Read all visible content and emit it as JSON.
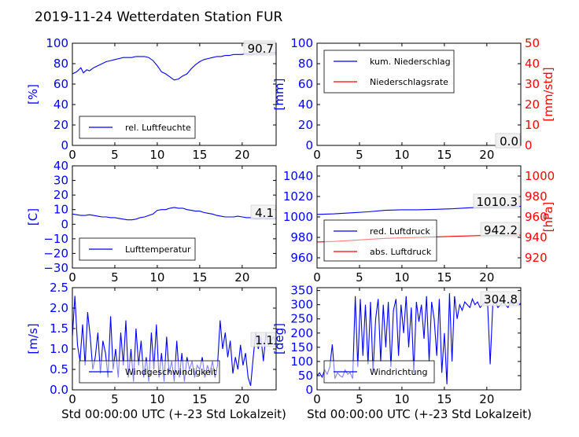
{
  "page_title": "2019-11-24 Wetterdaten Station FUR",
  "xlabel": "Std 00:00:00 UTC (+-23 Std Lokalzeit)",
  "colors": {
    "primary": "#0000ff",
    "secondary": "#ff0000"
  },
  "chart_data": [
    {
      "id": "luftfeuchte",
      "type": "line",
      "xlim": [
        0,
        24
      ],
      "ylim": [
        0,
        100
      ],
      "xticks": [
        0,
        5,
        10,
        15,
        20
      ],
      "yticks": [
        0,
        20,
        40,
        60,
        80,
        100
      ],
      "ylabel": "[%]",
      "series": [
        {
          "name": "rel. Luftfeuchte",
          "color": "#0000ff",
          "x": [
            0,
            0.5,
            1,
            1.3,
            1.7,
            2,
            2.5,
            3,
            3.5,
            4,
            4.5,
            5,
            5.5,
            6,
            6.5,
            7,
            7.5,
            8,
            8.5,
            9,
            9.5,
            10,
            10.5,
            11,
            11.5,
            12,
            12.5,
            13,
            13.5,
            14,
            14.5,
            15,
            15.5,
            16,
            16.5,
            17,
            17.5,
            18,
            18.5,
            19,
            19.5,
            20,
            20.5,
            21,
            21.5,
            22,
            22.5,
            23,
            24
          ],
          "y": [
            70,
            72,
            76,
            71,
            74,
            73,
            76,
            78,
            80,
            82,
            83,
            84,
            85,
            86,
            86,
            86,
            87,
            87,
            87,
            86,
            83,
            78,
            72,
            70,
            67,
            64,
            65,
            68,
            70,
            75,
            79,
            82,
            84,
            85,
            86,
            87,
            87,
            88,
            88,
            89,
            89,
            89,
            90,
            89,
            90,
            90,
            90,
            90.5,
            90.7
          ]
        }
      ],
      "value_labels": [
        {
          "text": "90.7"
        }
      ]
    },
    {
      "id": "niederschlag",
      "type": "line",
      "xlim": [
        0,
        24
      ],
      "ylim": [
        0,
        100
      ],
      "y2lim": [
        0,
        50
      ],
      "xticks": [
        0,
        5,
        10,
        15,
        20
      ],
      "yticks": [
        0,
        20,
        40,
        60,
        80,
        100
      ],
      "y2ticks": [
        0,
        10,
        20,
        30,
        40,
        50
      ],
      "ylabel": "[mm]",
      "y2label": "[mm/std]",
      "series": [
        {
          "name": "kum. Niederschlag",
          "color": "#0000ff",
          "axis": "left",
          "x": [
            0,
            24
          ],
          "y": [
            0,
            0
          ]
        },
        {
          "name": "Niederschlagsrate",
          "color": "#ff0000",
          "axis": "right",
          "x": [
            0,
            24
          ],
          "y": [
            0,
            0
          ]
        }
      ],
      "value_labels": [
        {
          "text": "0.0"
        },
        {
          "text": "0.0"
        }
      ]
    },
    {
      "id": "temperatur",
      "type": "line",
      "xlim": [
        0,
        24
      ],
      "ylim": [
        -30,
        40
      ],
      "xticks": [
        0,
        5,
        10,
        15,
        20
      ],
      "yticks": [
        -30,
        -20,
        -10,
        0,
        10,
        20,
        30,
        40
      ],
      "ylabel": "[C]",
      "series": [
        {
          "name": "Lufttemperatur",
          "color": "#0000ff",
          "x": [
            0,
            0.5,
            1,
            1.5,
            2,
            2.5,
            3,
            3.5,
            4,
            4.5,
            5,
            5.5,
            6,
            6.5,
            7,
            7.5,
            8,
            8.5,
            9,
            9.5,
            10,
            10.5,
            11,
            11.5,
            12,
            12.5,
            13,
            13.5,
            14,
            14.5,
            15,
            15.5,
            16,
            16.5,
            17,
            17.5,
            18,
            18.5,
            19,
            19.5,
            20,
            20.5,
            21,
            21.5,
            22,
            22.5,
            23,
            24
          ],
          "y": [
            7,
            6.5,
            6,
            6,
            6.5,
            6,
            5.5,
            5,
            5,
            4.5,
            4.5,
            4,
            3.5,
            3,
            3,
            3.5,
            4.5,
            5,
            6,
            7,
            9.5,
            10,
            10,
            11,
            11.5,
            11,
            11,
            10,
            9.5,
            9,
            9,
            8,
            7.5,
            7,
            6,
            5.5,
            5,
            5,
            5,
            5.5,
            5,
            4.5,
            4.5,
            4,
            4,
            4.5,
            4,
            4.1
          ]
        }
      ],
      "value_labels": [
        {
          "text": "4.1"
        }
      ]
    },
    {
      "id": "luftdruck",
      "type": "line",
      "xlim": [
        0,
        24
      ],
      "ylim": [
        950,
        1050
      ],
      "y2lim": [
        910,
        1010
      ],
      "xticks": [
        0,
        5,
        10,
        15,
        20
      ],
      "yticks": [
        960,
        980,
        1000,
        1020,
        1040
      ],
      "y2ticks": [
        920,
        940,
        960,
        980,
        1000
      ],
      "ylabel": "",
      "y2label": "[hPa]",
      "series": [
        {
          "name": "red. Luftdruck",
          "color": "#0000ff",
          "axis": "left",
          "x": [
            0,
            2,
            4,
            6,
            8,
            10,
            12,
            14,
            16,
            18,
            20,
            22,
            24
          ],
          "y": [
            1002.5,
            1003,
            1004,
            1005,
            1006.5,
            1007,
            1007,
            1007.5,
            1008,
            1009,
            1009.5,
            1010,
            1010.3
          ]
        }
      ],
      "value_labels": [
        {
          "text": "1010.3"
        },
        {
          "text": "942.2"
        }
      ]
    },
    {
      "id": "windgeschwindigkeit",
      "type": "line",
      "xlim": [
        0,
        24
      ],
      "ylim": [
        0,
        2.5
      ],
      "xticks": [
        0,
        5,
        10,
        15,
        20
      ],
      "yticks": [
        0.0,
        0.5,
        1.0,
        1.5,
        2.0,
        2.5
      ],
      "ylabel": "[m/s]",
      "series": [
        {
          "name": "Windgeschwindigkeit",
          "color": "#0000ff",
          "x": [
            0,
            0.3,
            0.6,
            0.9,
            1.2,
            1.5,
            1.8,
            2.1,
            2.4,
            2.7,
            3.0,
            3.3,
            3.6,
            3.9,
            4.2,
            4.5,
            4.8,
            5.1,
            5.4,
            5.7,
            6.0,
            6.3,
            6.6,
            6.9,
            7.2,
            7.5,
            7.8,
            8.1,
            8.4,
            8.7,
            9.0,
            9.3,
            9.6,
            9.9,
            10.2,
            10.5,
            10.8,
            11.1,
            11.4,
            11.7,
            12.0,
            12.3,
            12.6,
            12.9,
            13.2,
            13.5,
            13.8,
            14.1,
            14.4,
            14.7,
            15.0,
            15.3,
            15.6,
            15.9,
            16.2,
            16.5,
            16.8,
            17.1,
            17.4,
            17.7,
            18.0,
            18.3,
            18.6,
            18.9,
            19.2,
            19.5,
            19.8,
            20.1,
            20.4,
            20.7,
            21.0,
            21.3,
            21.6,
            21.9,
            22.2,
            22.5,
            22.8,
            23.1,
            23.4,
            23.7,
            24
          ],
          "y": [
            1.3,
            2.3,
            1.1,
            0.7,
            1.6,
            0.6,
            1.9,
            1.3,
            0.5,
            0.8,
            1.4,
            0.4,
            1.2,
            0.9,
            0.3,
            1.8,
            0.5,
            1.0,
            0.3,
            1.4,
            0.6,
            1.7,
            0.3,
            1.0,
            0.2,
            1.5,
            0.6,
            1.2,
            0.3,
            0.8,
            0.2,
            1.4,
            0.5,
            1.6,
            0.3,
            0.9,
            0.2,
            1.3,
            0.4,
            0.7,
            0.2,
            1.2,
            0.3,
            0.9,
            0.2,
            0.8,
            0.5,
            0.7,
            0.3,
            0.6,
            0.5,
            0.8,
            0.3,
            0.6,
            0.4,
            0.7,
            0.3,
            0.6,
            1.7,
            1.0,
            1.4,
            0.8,
            1.2,
            0.4,
            0.8,
            0.5,
            1.1,
            0.6,
            0.9,
            0.3,
            0.1,
            0.8,
            1.4,
            1.0,
            1.3,
            0.7,
            1.4,
            1.1,
            1.2,
            1.3,
            1.1
          ]
        }
      ],
      "value_labels": [
        {
          "text": "1.1"
        }
      ]
    },
    {
      "id": "windrichtung",
      "type": "line",
      "xlim": [
        0,
        24
      ],
      "ylim": [
        0,
        360
      ],
      "xticks": [
        0,
        5,
        10,
        15,
        20
      ],
      "yticks": [
        0,
        50,
        100,
        150,
        200,
        250,
        300,
        350
      ],
      "ylabel": "[deg]",
      "series": [
        {
          "name": "Windrichtung",
          "color": "#0000ff",
          "x": [
            0,
            0.3,
            0.6,
            0.9,
            1.2,
            1.5,
            1.8,
            2.1,
            2.4,
            2.7,
            3.0,
            3.3,
            3.6,
            3.9,
            4.2,
            4.5,
            4.8,
            5.1,
            5.4,
            5.7,
            6.0,
            6.3,
            6.6,
            6.9,
            7.2,
            7.5,
            7.8,
            8.1,
            8.4,
            8.7,
            9.0,
            9.3,
            9.6,
            9.9,
            10.2,
            10.5,
            10.8,
            11.1,
            11.4,
            11.7,
            12.0,
            12.3,
            12.6,
            12.9,
            13.2,
            13.5,
            13.8,
            14.1,
            14.4,
            14.7,
            15.0,
            15.3,
            15.6,
            15.9,
            16.2,
            16.5,
            16.8,
            17.1,
            17.4,
            17.7,
            18.0,
            18.3,
            18.6,
            18.9,
            19.2,
            19.5,
            19.8,
            20.1,
            20.4,
            20.7,
            21.0,
            21.3,
            21.6,
            21.9,
            22.2,
            22.5,
            22.8,
            23.1,
            23.4,
            23.7,
            24
          ],
          "y": [
            50,
            60,
            45,
            70,
            55,
            80,
            160,
            40,
            60,
            50,
            45,
            70,
            55,
            60,
            40,
            330,
            80,
            320,
            120,
            300,
            90,
            310,
            60,
            250,
            320,
            100,
            300,
            150,
            310,
            80,
            280,
            320,
            120,
            300,
            200,
            330,
            150,
            290,
            60,
            310,
            240,
            300,
            180,
            330,
            100,
            310,
            250,
            120,
            320,
            60,
            200,
            20,
            340,
            100,
            330,
            250,
            300,
            280,
            310,
            300,
            290,
            320,
            300,
            310,
            290,
            300,
            310,
            300,
            90,
            300,
            310,
            290,
            300,
            310,
            300,
            290,
            310,
            300,
            310,
            300,
            304.8
          ]
        }
      ],
      "value_labels": [
        {
          "text": "304.8"
        }
      ]
    }
  ]
}
